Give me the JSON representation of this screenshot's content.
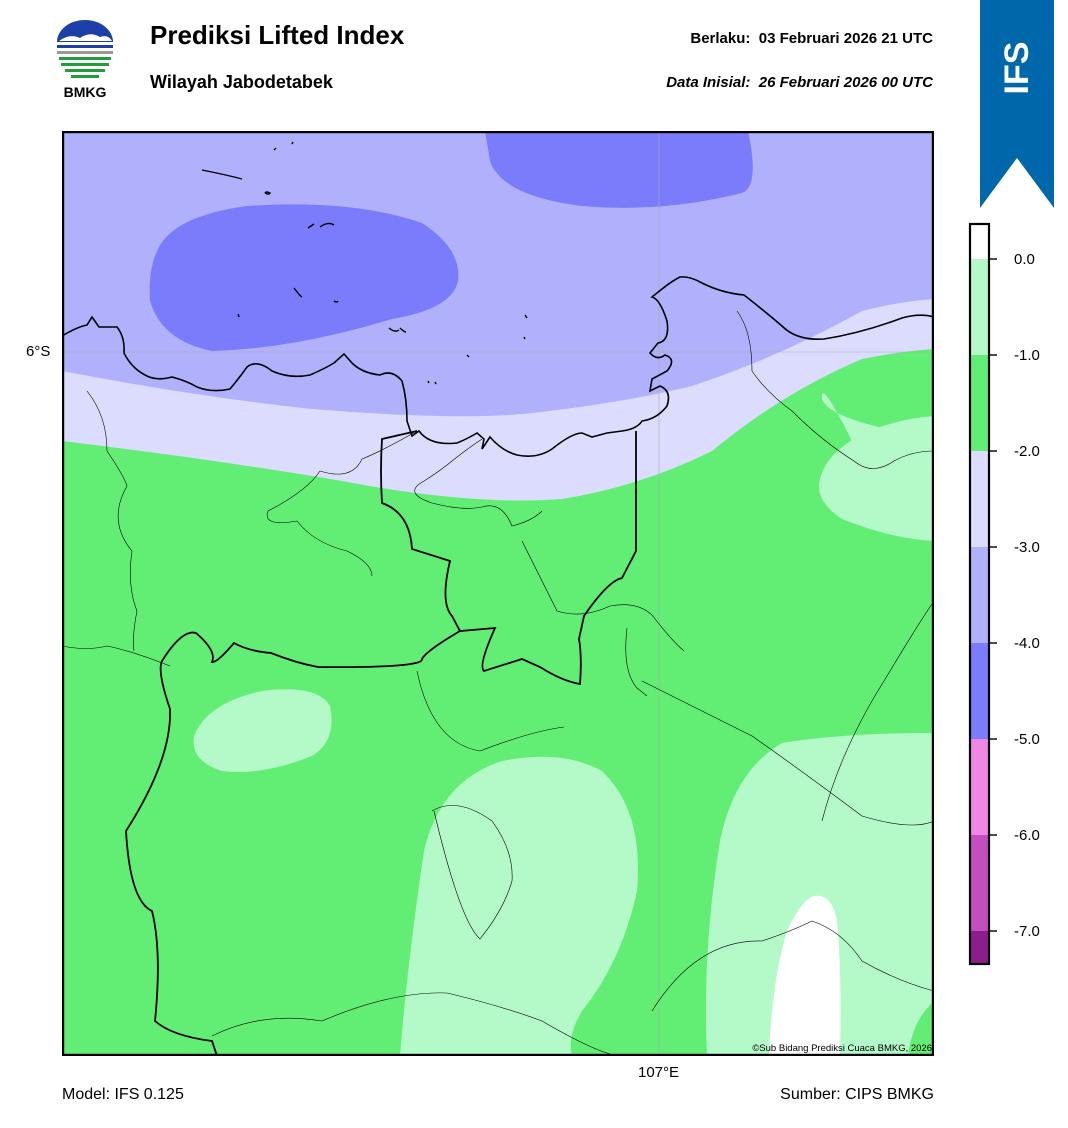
{
  "header": {
    "logo_text": "BMKG",
    "title": "Prediksi Lifted Index",
    "subtitle": "Wilayah Jabodetabek",
    "valid_label": "Berlaku:",
    "valid_time": "03 Februari 2026 21 UTC",
    "init_label": "Data Inisial:",
    "init_time": "26 Februari 2026 00 UTC"
  },
  "badge": {
    "text": "IFS",
    "color": "#0067ab"
  },
  "map": {
    "lat_label": "6°S",
    "lon_label": "107°E",
    "credit": "©Sub Bidang Prediksi Cuaca BMKG, 2026"
  },
  "footer": {
    "model": "Model: IFS 0.125",
    "source": "Sumber: CIPS BMKG"
  },
  "colorbar": {
    "ticks": [
      "0.0",
      "-1.0",
      "-2.0",
      "-3.0",
      "-4.0",
      "-5.0",
      "-6.0",
      "-7.0"
    ],
    "bands": [
      {
        "range": "> 0.0",
        "color": "#ffffff"
      },
      {
        "range": "0.0 to -1.0",
        "color": "#b4f9c8"
      },
      {
        "range": "-1.0 to -2.0",
        "color": "#62ee74"
      },
      {
        "range": "-2.0 to -3.0",
        "color": "#dcdcfe"
      },
      {
        "range": "-3.0 to -4.0",
        "color": "#b0b0fd"
      },
      {
        "range": "-4.0 to -5.0",
        "color": "#7b7cfb"
      },
      {
        "range": "-5.0 to -6.0",
        "color": "#ee88e4"
      },
      {
        "range": "-6.0 to -7.0",
        "color": "#c44ebf"
      },
      {
        "range": "< -7.0",
        "color": "#8b1e8b"
      }
    ]
  }
}
